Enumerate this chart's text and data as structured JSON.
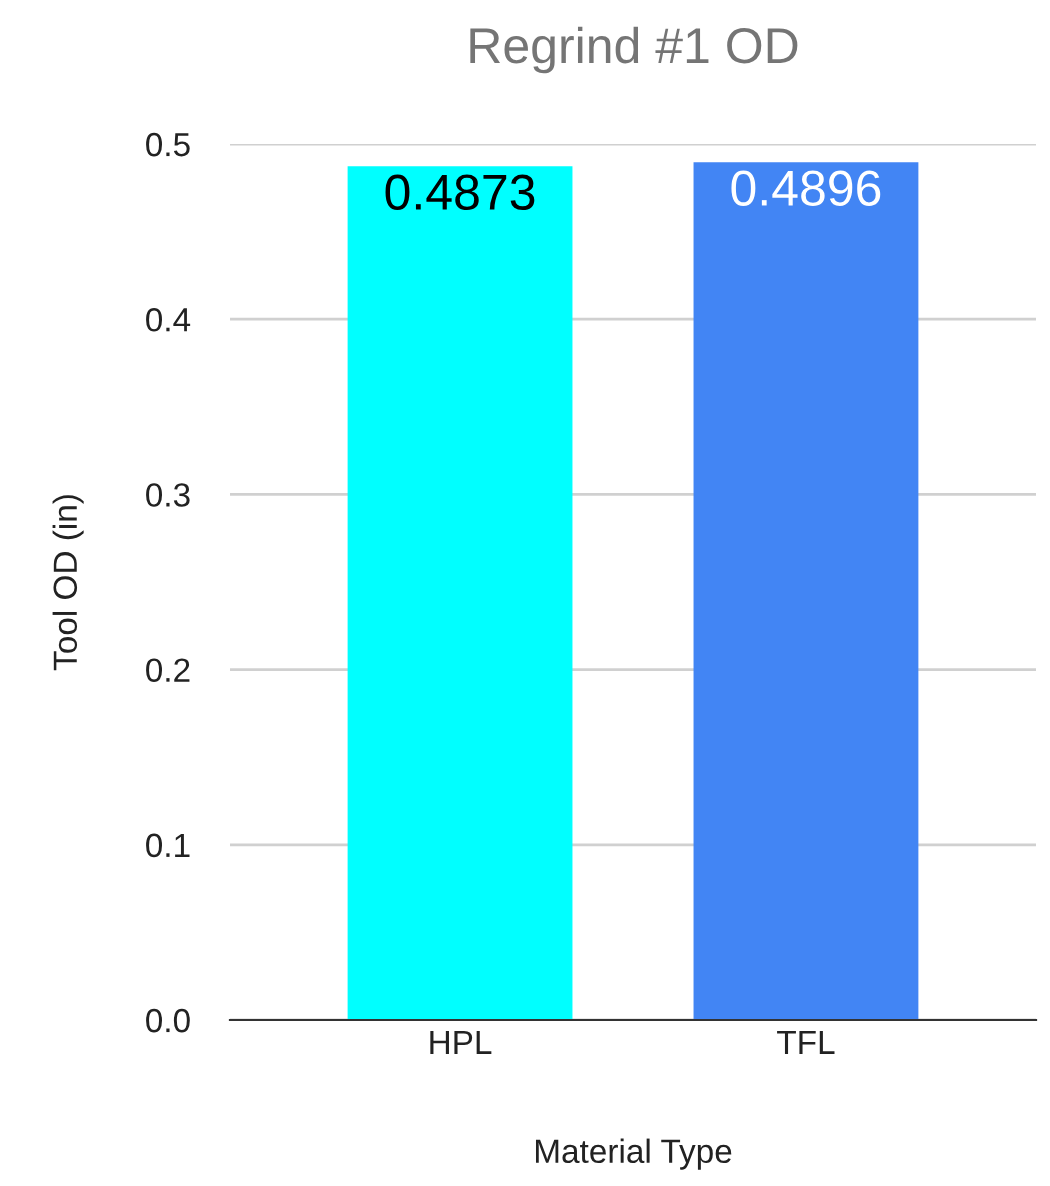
{
  "chart_data": {
    "type": "bar",
    "title": "Regrind #1 OD",
    "xlabel": "Material Type",
    "ylabel": "Tool OD (in)",
    "categories": [
      "HPL",
      "TFL"
    ],
    "values": [
      0.4873,
      0.4896
    ],
    "colors": [
      "#00ffff",
      "#4285f4"
    ],
    "ylim": [
      0,
      0.5
    ],
    "yticks": [
      {
        "value": 0,
        "label": "0.0"
      },
      0.1,
      0.2,
      0.3,
      0.4,
      0.5
    ],
    "grid": "y",
    "data_labels": true
  }
}
